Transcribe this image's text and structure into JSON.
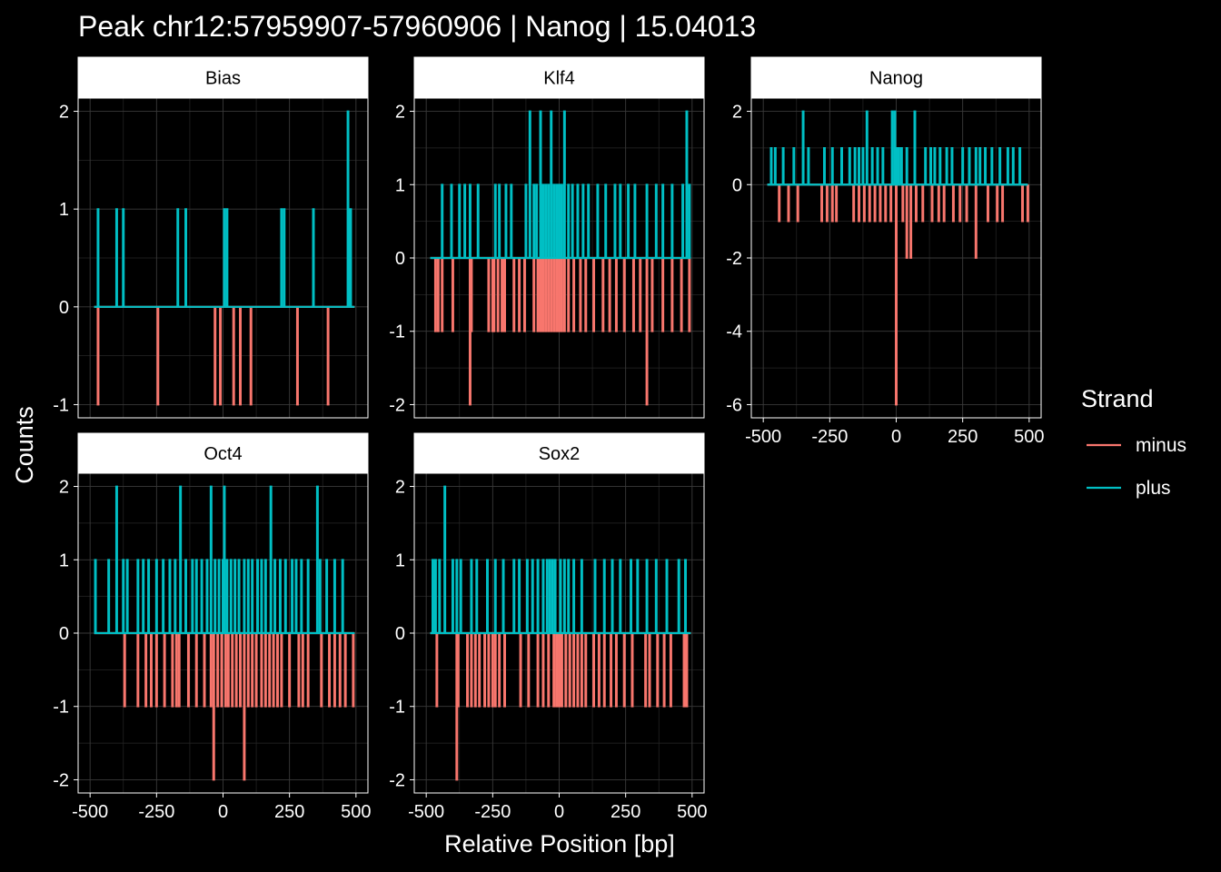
{
  "title": "Peak chr12:57959907-57960906 | Nanog | 15.04013",
  "xlabel": "Relative Position [bp]",
  "ylabel": "Counts",
  "legend": {
    "title": "Strand",
    "items": [
      {
        "label": "minus",
        "color": "#F8766D"
      },
      {
        "label": "plus",
        "color": "#00BFC4"
      }
    ]
  },
  "x_tick_labels": [
    "-500",
    "-250",
    "0",
    "250",
    "500"
  ],
  "colors": {
    "background": "#000000",
    "panel_border": "#ffffff",
    "grid": "#3a3a3a",
    "strip_bg": "#ffffff",
    "strip_text": "#000000",
    "minus": "#F8766D",
    "plus": "#00BFC4"
  },
  "chart_data": [
    {
      "type": "line",
      "panel": "Bias",
      "xlim": [
        -500,
        500
      ],
      "ylim": [
        -1,
        2
      ],
      "y_ticks": [
        -1,
        0,
        1,
        2
      ],
      "y_tick_labels": [
        "-1",
        "0",
        "1",
        "2"
      ],
      "series": [
        {
          "name": "plus",
          "x": [
            -470,
            -400,
            -375,
            -170,
            -140,
            5,
            15,
            220,
            230,
            340,
            470,
            480
          ],
          "values": [
            1,
            1,
            1,
            1,
            1,
            1,
            1,
            1,
            1,
            1,
            2,
            1
          ]
        },
        {
          "name": "minus",
          "x": [
            -470,
            -245,
            -30,
            -10,
            40,
            65,
            105,
            280,
            395
          ],
          "values": [
            -1,
            -1,
            -1,
            -1,
            -1,
            -1,
            -1,
            -1,
            -1
          ]
        }
      ]
    },
    {
      "type": "line",
      "panel": "Klf4",
      "xlim": [
        -500,
        500
      ],
      "ylim": [
        -2,
        2
      ],
      "y_ticks": [
        -2,
        -1,
        0,
        1,
        2
      ],
      "y_tick_labels": [
        "-2",
        "-1",
        "0",
        "1",
        "2"
      ],
      "series": [
        {
          "name": "plus",
          "x": [
            -440,
            -405,
            -375,
            -355,
            -335,
            -305,
            -240,
            -225,
            -200,
            -180,
            -125,
            -110,
            -95,
            -85,
            -70,
            -60,
            -50,
            -40,
            -30,
            -20,
            -10,
            0,
            10,
            20,
            35,
            50,
            70,
            90,
            110,
            145,
            175,
            210,
            230,
            260,
            285,
            330,
            365,
            390,
            425,
            465,
            480,
            490
          ],
          "values": [
            1,
            1,
            1,
            1,
            1,
            1,
            1,
            1,
            1,
            1,
            1,
            2,
            1,
            1,
            2,
            1,
            1,
            1,
            2,
            1,
            1,
            1,
            1,
            2,
            1,
            1,
            1,
            1,
            1,
            1,
            1,
            1,
            1,
            1,
            1,
            1,
            1,
            1,
            1,
            1,
            2,
            1
          ]
        },
        {
          "name": "minus",
          "x": [
            -465,
            -455,
            -440,
            -400,
            -335,
            -330,
            -265,
            -250,
            -245,
            -230,
            -215,
            -205,
            -170,
            -150,
            -130,
            -95,
            -80,
            -70,
            -60,
            -50,
            -40,
            -30,
            -20,
            -10,
            0,
            10,
            20,
            35,
            55,
            80,
            100,
            130,
            165,
            190,
            215,
            245,
            280,
            305,
            330,
            350,
            390,
            425,
            460,
            490
          ],
          "values": [
            -1,
            -1,
            -1,
            -1,
            -2,
            -1,
            -1,
            -1,
            -1,
            -1,
            -1,
            -1,
            -1,
            -1,
            -1,
            -1,
            -1,
            -1,
            -1,
            -1,
            -1,
            -1,
            -1,
            -1,
            -1,
            -1,
            -1,
            -1,
            -1,
            -1,
            -1,
            -1,
            -1,
            -1,
            -1,
            -1,
            -1,
            -1,
            -2,
            -1,
            -1,
            -1,
            -1,
            -1
          ]
        }
      ]
    },
    {
      "type": "line",
      "panel": "Nanog",
      "xlim": [
        -500,
        500
      ],
      "ylim": [
        -6,
        2
      ],
      "y_ticks": [
        -6,
        -4,
        -2,
        0,
        2
      ],
      "y_tick_labels": [
        "-6",
        "-4",
        "-2",
        "0",
        "2"
      ],
      "series": [
        {
          "name": "plus",
          "x": [
            -470,
            -455,
            -425,
            -385,
            -350,
            -330,
            -270,
            -240,
            -205,
            -175,
            -155,
            -140,
            -125,
            -110,
            -90,
            -70,
            -50,
            -15,
            -5,
            0,
            5,
            10,
            20,
            40,
            70,
            110,
            130,
            145,
            165,
            190,
            210,
            250,
            275,
            300,
            315,
            335,
            360,
            390,
            420,
            440,
            465
          ],
          "values": [
            1,
            1,
            1,
            1,
            2,
            1,
            1,
            1,
            1,
            1,
            1,
            1,
            1,
            2,
            1,
            1,
            1,
            2,
            2,
            1,
            1,
            1,
            1,
            1,
            2,
            1,
            1,
            1,
            1,
            1,
            1,
            1,
            1,
            1,
            1,
            1,
            1,
            1,
            1,
            1,
            1
          ]
        },
        {
          "name": "minus",
          "x": [
            -440,
            -405,
            -370,
            -280,
            -260,
            -240,
            -225,
            -160,
            -140,
            -120,
            -100,
            -80,
            -60,
            -40,
            -20,
            0,
            25,
            40,
            55,
            75,
            100,
            135,
            160,
            180,
            215,
            240,
            265,
            300,
            345,
            380,
            400,
            475,
            495
          ],
          "values": [
            -1,
            -1,
            -1,
            -1,
            -1,
            -1,
            -1,
            -1,
            -1,
            -1,
            -1,
            -1,
            -1,
            -1,
            -1,
            -6,
            -1,
            -2,
            -2,
            -1,
            -1,
            -1,
            -1,
            -1,
            -1,
            -1,
            -1,
            -2,
            -1,
            -1,
            -1,
            -1,
            -1
          ]
        }
      ]
    },
    {
      "type": "line",
      "panel": "Oct4",
      "xlim": [
        -500,
        500
      ],
      "ylim": [
        -2,
        2
      ],
      "y_ticks": [
        -2,
        -1,
        0,
        1,
        2
      ],
      "y_tick_labels": [
        "-2",
        "-1",
        "0",
        "1",
        "2"
      ],
      "series": [
        {
          "name": "plus",
          "x": [
            -480,
            -430,
            -400,
            -375,
            -360,
            -320,
            -300,
            -280,
            -250,
            -225,
            -200,
            -180,
            -160,
            -140,
            -115,
            -100,
            -80,
            -60,
            -45,
            -30,
            -15,
            0,
            5,
            15,
            30,
            45,
            60,
            80,
            95,
            110,
            130,
            145,
            160,
            180,
            195,
            215,
            235,
            260,
            275,
            295,
            320,
            355,
            365,
            390,
            420,
            450
          ],
          "values": [
            1,
            1,
            2,
            1,
            1,
            1,
            1,
            1,
            1,
            1,
            1,
            1,
            2,
            1,
            1,
            1,
            1,
            1,
            2,
            1,
            1,
            1,
            2,
            1,
            1,
            1,
            1,
            1,
            1,
            1,
            1,
            1,
            1,
            2,
            1,
            1,
            1,
            1,
            1,
            1,
            1,
            2,
            1,
            1,
            1,
            1
          ]
        },
        {
          "name": "minus",
          "x": [
            -370,
            -320,
            -290,
            -270,
            -250,
            -220,
            -190,
            -175,
            -165,
            -130,
            -100,
            -70,
            -45,
            -35,
            -20,
            -5,
            10,
            20,
            35,
            50,
            65,
            80,
            95,
            110,
            125,
            145,
            160,
            175,
            190,
            205,
            220,
            250,
            285,
            300,
            320,
            370,
            400,
            420,
            440,
            460,
            490
          ],
          "values": [
            -1,
            -1,
            -1,
            -1,
            -1,
            -1,
            -1,
            -1,
            -1,
            -1,
            -1,
            -1,
            -1,
            -2,
            -1,
            -1,
            -1,
            -1,
            -1,
            -1,
            -1,
            -2,
            -1,
            -1,
            -1,
            -1,
            -1,
            -1,
            -1,
            -1,
            -1,
            -1,
            -1,
            -1,
            -1,
            -1,
            -1,
            -1,
            -1,
            -1,
            -1
          ]
        }
      ]
    },
    {
      "type": "line",
      "panel": "Sox2",
      "xlim": [
        -500,
        500
      ],
      "ylim": [
        -2,
        2
      ],
      "y_ticks": [
        -2,
        -1,
        0,
        1,
        2
      ],
      "y_tick_labels": [
        "-2",
        "-1",
        "0",
        "1",
        "2"
      ],
      "series": [
        {
          "name": "plus",
          "x": [
            -475,
            -465,
            -450,
            -430,
            -400,
            -385,
            -370,
            -330,
            -310,
            -270,
            -240,
            -210,
            -170,
            -150,
            -120,
            -100,
            -80,
            -60,
            -45,
            -35,
            -25,
            -15,
            5,
            20,
            35,
            55,
            85,
            135,
            170,
            200,
            230,
            270,
            295,
            330,
            365,
            405,
            450,
            475
          ],
          "values": [
            1,
            1,
            1,
            2,
            1,
            1,
            1,
            1,
            1,
            1,
            1,
            1,
            1,
            1,
            1,
            1,
            1,
            1,
            1,
            1,
            1,
            1,
            1,
            1,
            1,
            1,
            1,
            1,
            1,
            1,
            1,
            1,
            1,
            1,
            1,
            1,
            1,
            1
          ]
        },
        {
          "name": "minus",
          "x": [
            -460,
            -385,
            -380,
            -345,
            -330,
            -315,
            -300,
            -280,
            -265,
            -250,
            -240,
            -225,
            -205,
            -145,
            -115,
            -80,
            -60,
            -40,
            -20,
            -10,
            0,
            10,
            25,
            40,
            55,
            70,
            85,
            100,
            130,
            150,
            170,
            195,
            215,
            245,
            275,
            325,
            340,
            370,
            395,
            420,
            470,
            480
          ],
          "values": [
            -1,
            -2,
            -1,
            -1,
            -1,
            -1,
            -1,
            -1,
            -1,
            -1,
            -1,
            -1,
            -1,
            -1,
            -1,
            -1,
            -1,
            -1,
            -1,
            -1,
            -1,
            -1,
            -1,
            -1,
            -1,
            -1,
            -1,
            -1,
            -1,
            -1,
            -1,
            -1,
            -1,
            -1,
            -1,
            -1,
            -1,
            -1,
            -1,
            -1,
            -1,
            -1
          ]
        }
      ]
    }
  ]
}
